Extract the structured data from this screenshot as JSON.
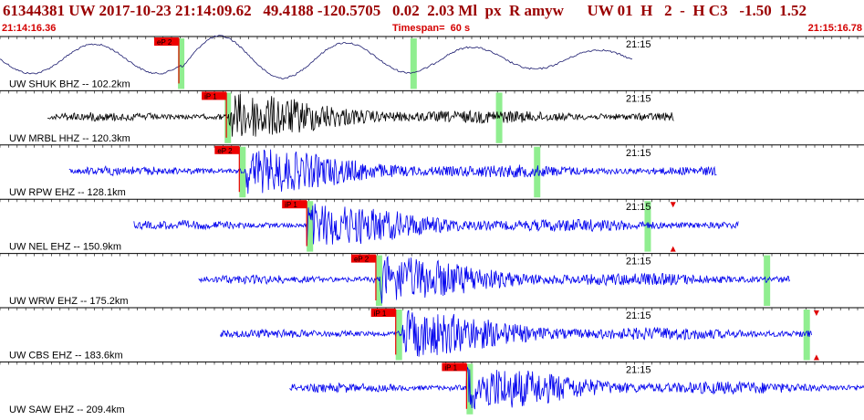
{
  "header": {
    "title": "61344381 UW 2017-10-23 21:14:09.62   49.4188 -120.5705   0.02  2.03 Ml  px  R amyw      UW 01  H   2  -  H C3   -1.50  1.52",
    "start_time": "21:14:16.36",
    "timespan": "Timespan=  60 s",
    "end_time": "21:15:16.78"
  },
  "colors": {
    "header_text": "#9a0000",
    "subheader_text": "#d40000",
    "pick_flag": "#ee0000",
    "window_marker": "#90ee90",
    "trace_dark_blue": "#1a1a6e",
    "trace_black": "#000000",
    "trace_blue": "#0000ee",
    "arrival_marker": "#e00000"
  },
  "panels": [
    {
      "label": "UW SHUK BHZ -- 102.2km",
      "time_label": "21:15",
      "pick_label": "eP 2",
      "pick": 0.207,
      "green": [
        0.206,
        0.475
      ],
      "trace_start": 0.0,
      "trace_end": 0.733,
      "onset": 0.21,
      "color": "dark_blue",
      "style": "sine",
      "arrivals": []
    },
    {
      "label": "UW MRBL HHZ -- 120.3km",
      "time_label": "21:15",
      "pick_label": "iP 1",
      "pick": 0.262,
      "green": [
        0.26,
        0.574
      ],
      "trace_start": 0.055,
      "trace_end": 0.78,
      "onset": 0.265,
      "color": "black",
      "style": "noise",
      "arrivals": []
    },
    {
      "label": "UW RPW EHZ -- 128.1km",
      "time_label": "21:15",
      "pick_label": "eP 2",
      "pick": 0.277,
      "green": [
        0.277,
        0.618
      ],
      "trace_start": 0.08,
      "trace_end": 0.83,
      "onset": 0.285,
      "color": "blue",
      "style": "noise",
      "arrivals": []
    },
    {
      "label": "UW NEL EHZ -- 150.9km",
      "time_label": "21:15",
      "pick_label": "iP 1",
      "pick": 0.355,
      "green": [
        0.355,
        0.746
      ],
      "trace_start": 0.155,
      "trace_end": 0.855,
      "onset": 0.355,
      "color": "blue",
      "style": "noise",
      "arrivals": [
        0.779
      ]
    },
    {
      "label": "UW WRW EHZ -- 175.2km",
      "time_label": "21:15",
      "pick_label": "eP 2",
      "pick": 0.435,
      "green": [
        0.435,
        0.884
      ],
      "trace_start": 0.23,
      "trace_end": 0.915,
      "onset": 0.44,
      "color": "blue",
      "style": "noise",
      "arrivals": []
    },
    {
      "label": "UW CBS EHZ -- 183.6km",
      "time_label": "21:15",
      "pick_label": "iP 1",
      "pick": 0.458,
      "green": [
        0.458,
        0.93
      ],
      "trace_start": 0.255,
      "trace_end": 0.94,
      "onset": 0.465,
      "color": "blue",
      "style": "noise",
      "arrivals": [
        0.945
      ]
    },
    {
      "label": "UW SAW EHZ -- 209.4km",
      "time_label": "21:15",
      "pick_label": "iP 1",
      "pick": 0.54,
      "green": [
        0.54,
        1.072
      ],
      "trace_start": 0.335,
      "trace_end": 1.0,
      "onset": 0.54,
      "color": "blue",
      "style": "noise",
      "arrivals": [
        1.12
      ]
    }
  ]
}
